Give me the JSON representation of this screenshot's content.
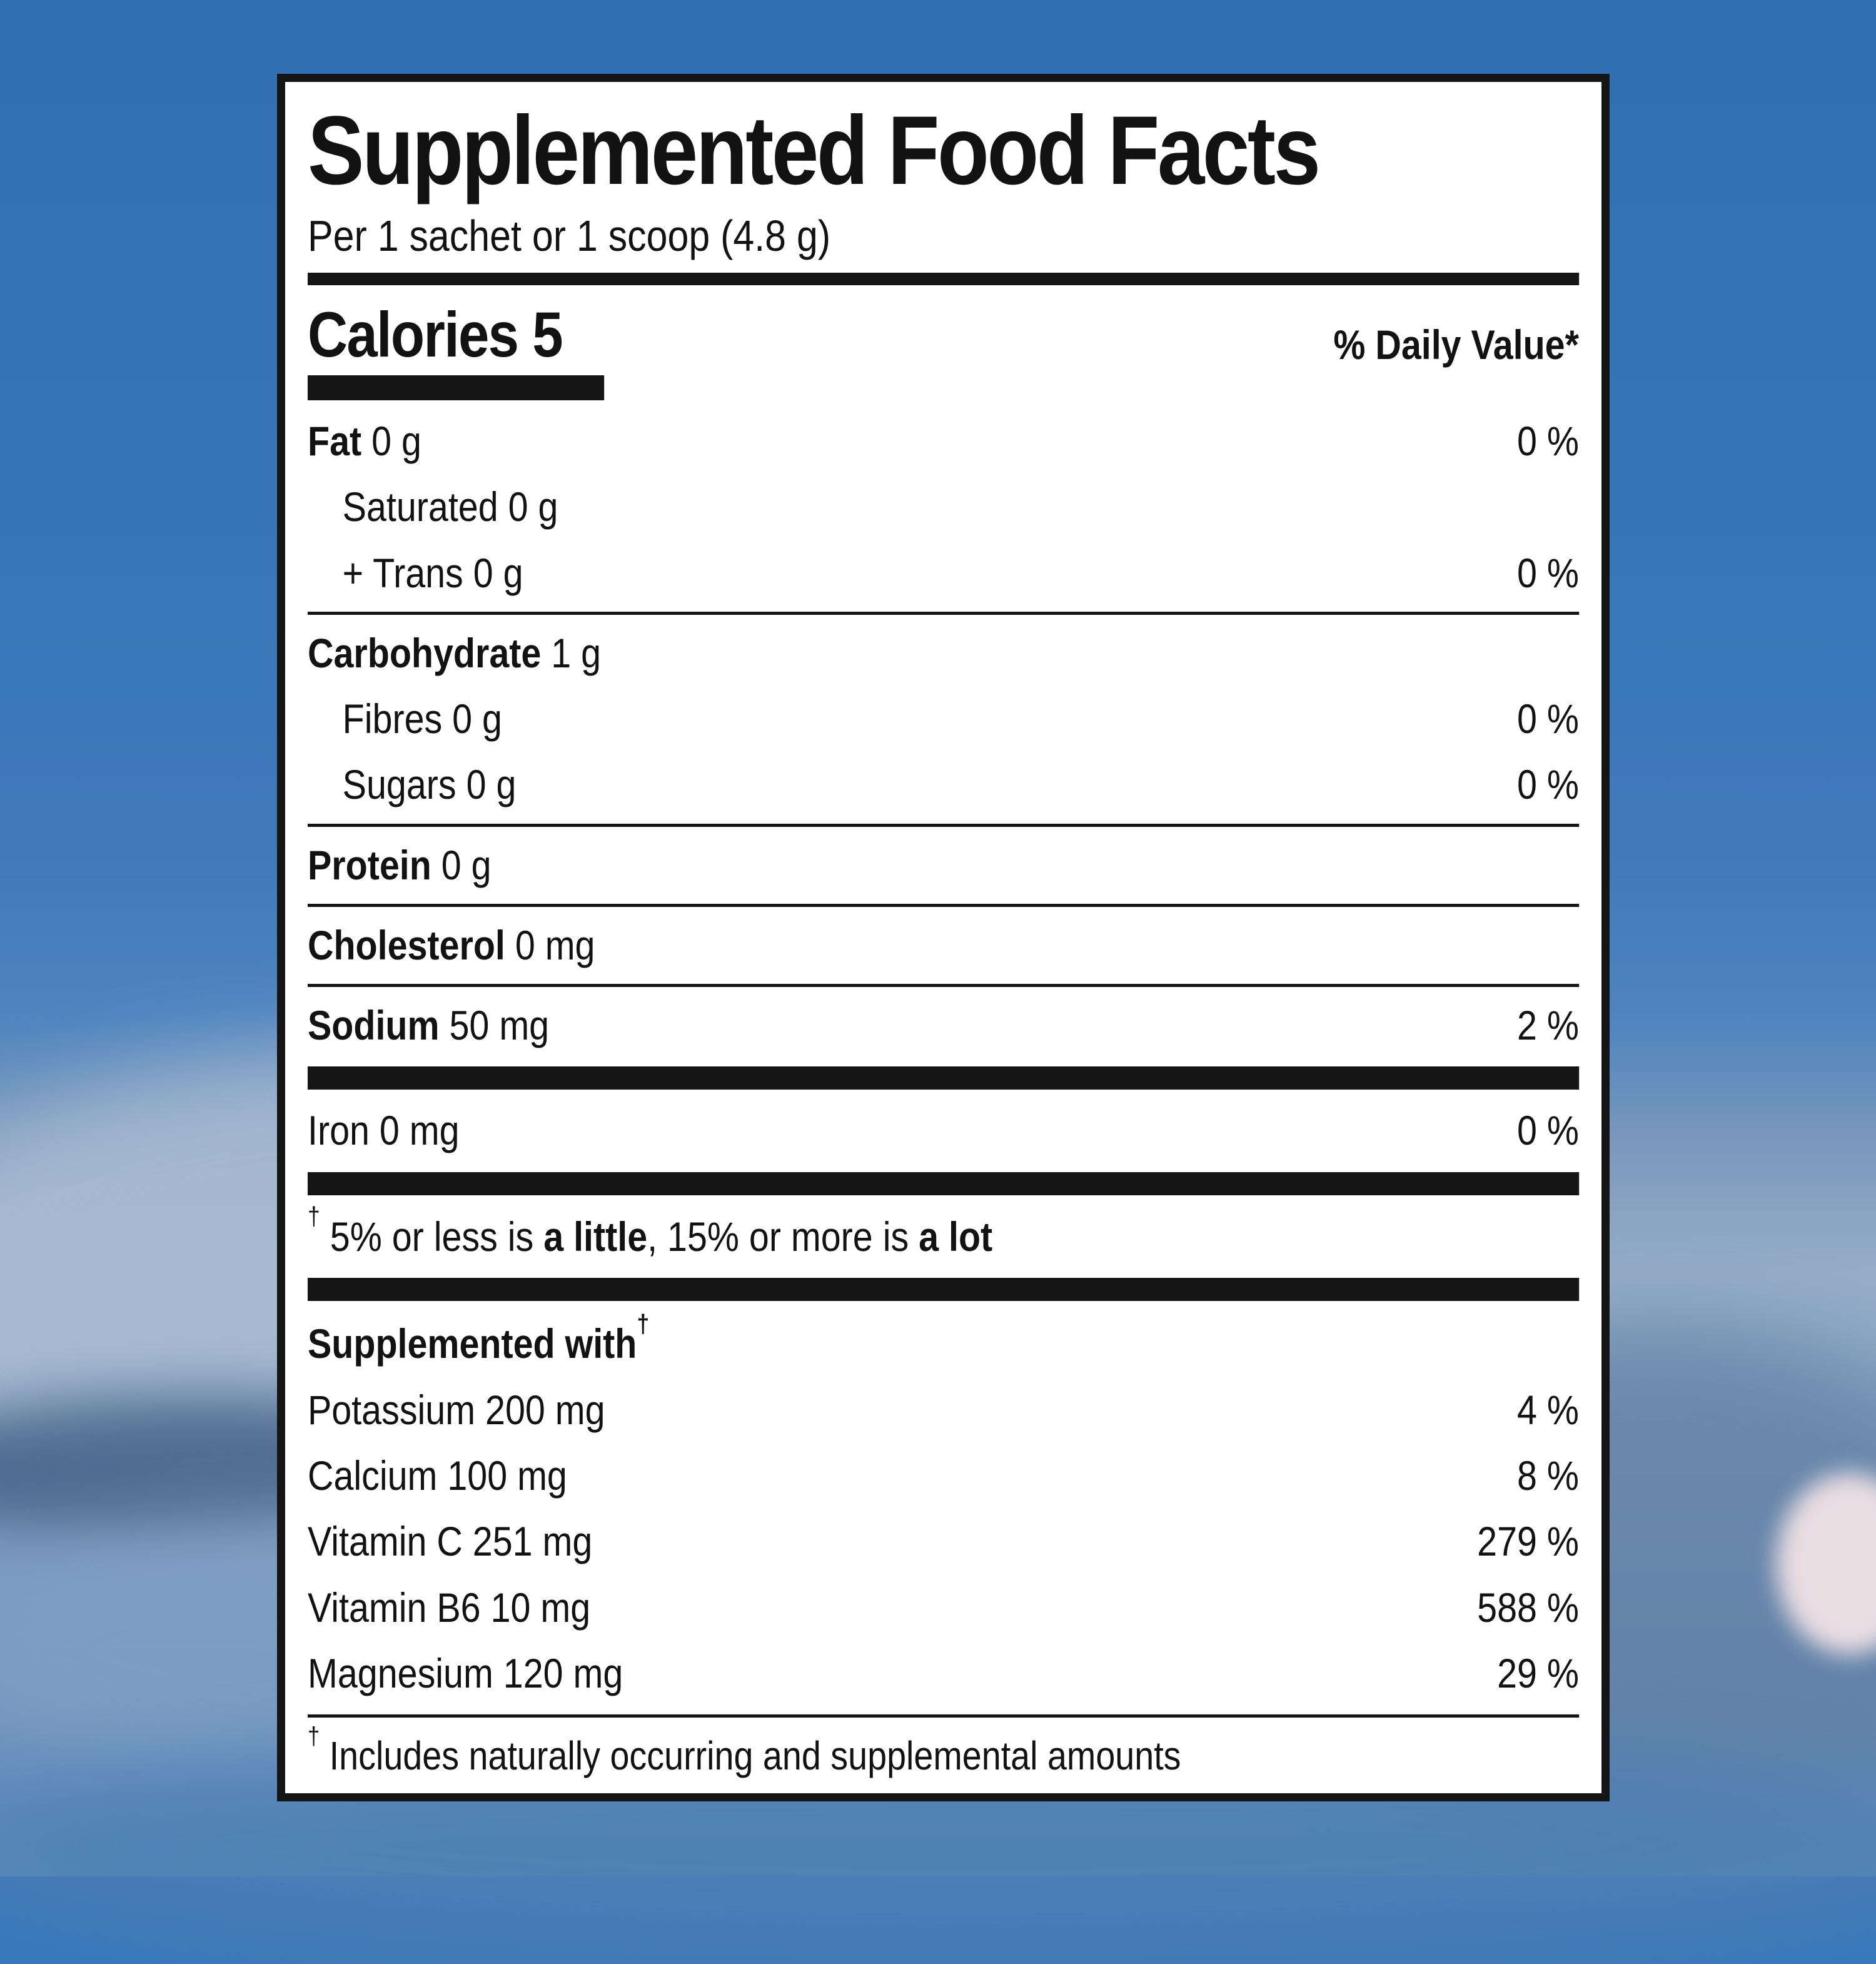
{
  "theme": {
    "background_blue_top": "#3070b1",
    "background_blue_bottom": "#5d8cbe",
    "label_background": "#ffffff",
    "label_border": "#151515",
    "text_color": "#121212"
  },
  "label": {
    "title": "Supplemented Food Facts",
    "serving": "Per 1 sachet or 1 scoop (4.8 g)",
    "calories": {
      "label": "Calories",
      "value": "5"
    },
    "daily_value_header": "% Daily Value*",
    "rows": [
      {
        "b": "Fat",
        "r": " 0 g",
        "v": "0 %"
      },
      {
        "b": "",
        "r": "Saturated 0 g",
        "v": ""
      },
      {
        "b": "",
        "r": "+ Trans 0 g",
        "v": "0 %"
      },
      {
        "b": "Carbohydrate",
        "r": " 1 g",
        "v": ""
      },
      {
        "b": "",
        "r": "Fibres 0 g",
        "v": "0 %"
      },
      {
        "b": "",
        "r": "Sugars 0 g",
        "v": "0 %"
      },
      {
        "b": "Protein",
        "r": " 0 g",
        "v": ""
      },
      {
        "b": "Cholesterol",
        "r": " 0 mg",
        "v": ""
      },
      {
        "b": "Sodium",
        "r": " 50 mg",
        "v": "2 %"
      },
      {
        "b": "",
        "r": "Iron 0 mg",
        "v": "0 %"
      }
    ],
    "dv_footnote": {
      "dagger": "†",
      "text_1": " 5% or less is ",
      "bold_1": "a little",
      "text_2": ", 15% or more is ",
      "bold_2": "a lot"
    },
    "supplemented": {
      "heading": "Supplemented with",
      "dagger": "†",
      "rows": [
        {
          "r": "Potassium 200 mg",
          "v": "4 %"
        },
        {
          "r": "Calcium 100 mg",
          "v": "8 %"
        },
        {
          "r": "Vitamin C 251 mg",
          "v": "279 %"
        },
        {
          "r": "Vitamin B6 10 mg",
          "v": "588 %"
        },
        {
          "r": "Magnesium 120 mg",
          "v": "29 %"
        }
      ]
    },
    "bottom_note": {
      "dagger": "†",
      "text": " Includes naturally occurring and supplemental amounts"
    }
  }
}
